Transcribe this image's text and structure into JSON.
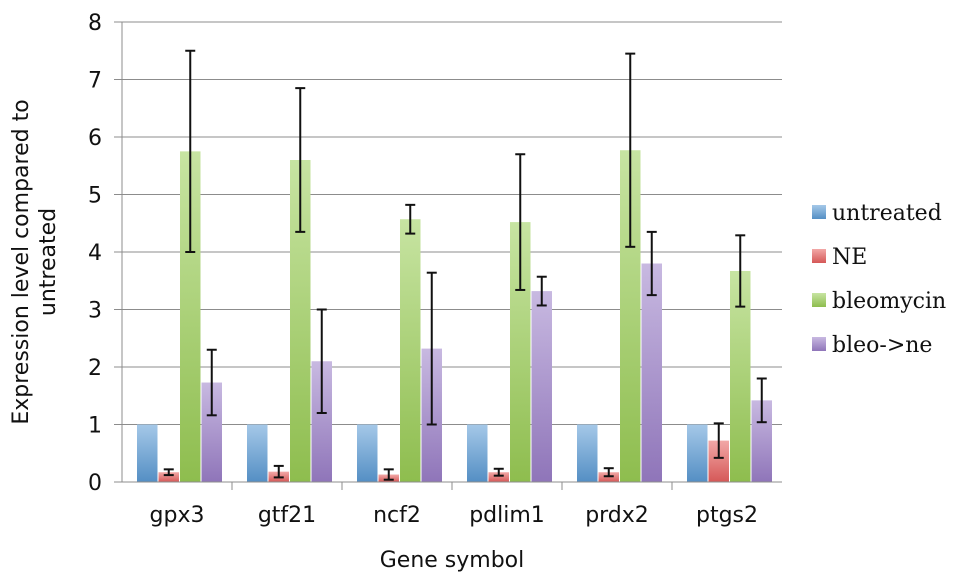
{
  "chart_data": {
    "type": "bar",
    "title": "",
    "xlabel": "Gene symbol",
    "ylabel": "Expression level compared to untreated",
    "ylim": [
      0,
      8
    ],
    "yticks": [
      0,
      1,
      2,
      3,
      4,
      5,
      6,
      7,
      8
    ],
    "grid": true,
    "legend_position": "right",
    "categories": [
      "gpx3",
      "gtf21",
      "ncf2",
      "pdlim1",
      "prdx2",
      "ptgs2"
    ],
    "series": [
      {
        "name": "untreated",
        "color": "#5b9bd5",
        "values": [
          1,
          1,
          1,
          1,
          1,
          1
        ],
        "error": [
          0,
          0,
          0,
          0,
          0,
          0
        ]
      },
      {
        "name": "NE",
        "color": "#e8605f",
        "values": [
          0.17,
          0.18,
          0.13,
          0.17,
          0.17,
          0.72
        ],
        "error": [
          0.05,
          0.1,
          0.09,
          0.06,
          0.07,
          0.3
        ]
      },
      {
        "name": "bleomycin",
        "color": "#9acd55",
        "values": [
          5.75,
          5.6,
          4.57,
          4.52,
          5.77,
          3.67
        ],
        "error": [
          1.75,
          1.25,
          0.25,
          1.18,
          1.68,
          0.62
        ]
      },
      {
        "name": "bleo->ne",
        "color": "#9b7fc9",
        "values": [
          1.73,
          2.1,
          2.32,
          3.32,
          3.8,
          1.42
        ],
        "error": [
          0.57,
          0.9,
          1.32,
          0.25,
          0.55,
          0.38
        ]
      }
    ]
  }
}
